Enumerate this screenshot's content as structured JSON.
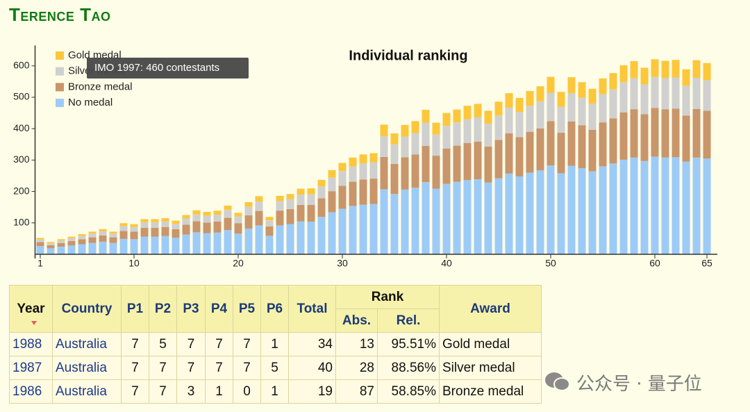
{
  "header": {
    "title": "Terence Tao"
  },
  "chart_data": {
    "type": "stacked_bar",
    "title": "Individual ranking",
    "tooltip": "IMO 1997: 460 contestants",
    "x": [
      1,
      2,
      3,
      4,
      5,
      6,
      7,
      8,
      9,
      10,
      11,
      12,
      13,
      14,
      15,
      16,
      17,
      18,
      19,
      20,
      21,
      22,
      23,
      24,
      25,
      26,
      27,
      28,
      29,
      30,
      31,
      32,
      33,
      34,
      35,
      36,
      37,
      38,
      39,
      40,
      41,
      42,
      43,
      44,
      45,
      46,
      47,
      48,
      49,
      50,
      51,
      52,
      53,
      54,
      55,
      56,
      57,
      58,
      59,
      60,
      61,
      62,
      63,
      64,
      65
    ],
    "xlim": [
      0.5,
      66
    ],
    "xticks": [
      1,
      10,
      20,
      30,
      40,
      50,
      60,
      65
    ],
    "ylim": [
      0,
      665
    ],
    "yticks": [
      100,
      200,
      300,
      400,
      500,
      600
    ],
    "legend": "top-left",
    "series": [
      {
        "name": "Gold medal",
        "color": "#fdc73c",
        "values": [
          5,
          4,
          4,
          5,
          6,
          6,
          7,
          6,
          9,
          9,
          10,
          10,
          10,
          10,
          11,
          13,
          12,
          13,
          14,
          12,
          15,
          17,
          11,
          17,
          17,
          19,
          19,
          21,
          24,
          26,
          28,
          29,
          29,
          37,
          35,
          37,
          38,
          41,
          38,
          41,
          41,
          43,
          43,
          41,
          44,
          46,
          45,
          47,
          48,
          51,
          47,
          51,
          49,
          47,
          50,
          52,
          54,
          55,
          53,
          56,
          55,
          56,
          53,
          56,
          55
        ]
      },
      {
        "name": "Silver medal",
        "color": "#d0d0d0",
        "values": [
          8,
          6,
          8,
          9,
          10,
          12,
          13,
          12,
          16,
          15,
          18,
          18,
          18,
          17,
          20,
          22,
          22,
          22,
          25,
          21,
          27,
          30,
          19,
          30,
          31,
          33,
          34,
          38,
          43,
          47,
          49,
          51,
          52,
          66,
          62,
          66,
          68,
          74,
          67,
          72,
          74,
          76,
          77,
          73,
          78,
          82,
          80,
          83,
          86,
          90,
          83,
          90,
          88,
          84,
          90,
          92,
          96,
          98,
          95,
          99,
          99,
          99,
          94,
          99,
          97
        ]
      },
      {
        "name": "Bronze medal",
        "color": "#c9956a",
        "values": [
          13,
          10,
          12,
          14,
          16,
          18,
          20,
          18,
          25,
          24,
          28,
          28,
          29,
          27,
          31,
          35,
          34,
          35,
          39,
          33,
          42,
          46,
          30,
          47,
          48,
          52,
          53,
          59,
          67,
          73,
          77,
          80,
          81,
          103,
          96,
          103,
          106,
          115,
          105,
          113,
          115,
          118,
          120,
          114,
          122,
          128,
          125,
          130,
          134,
          141,
          129,
          141,
          137,
          132,
          140,
          144,
          151,
          154,
          149,
          155,
          154,
          155,
          147,
          155,
          152
        ]
      },
      {
        "name": "No medal",
        "color": "#9dcbf8",
        "values": [
          26,
          19,
          24,
          28,
          32,
          36,
          40,
          36,
          49,
          48,
          56,
          56,
          58,
          53,
          63,
          70,
          67,
          69,
          77,
          66,
          82,
          92,
          59,
          92,
          96,
          105,
          104,
          119,
          134,
          145,
          154,
          158,
          160,
          207,
          192,
          206,
          212,
          230,
          209,
          224,
          231,
          236,
          239,
          229,
          242,
          257,
          248,
          260,
          267,
          283,
          258,
          282,
          274,
          264,
          280,
          289,
          301,
          308,
          297,
          311,
          308,
          309,
          295,
          308,
          305
        ]
      }
    ]
  },
  "table": {
    "header": [
      "Year",
      "Country",
      "P1",
      "P2",
      "P3",
      "P4",
      "P5",
      "P6",
      "Total",
      "Rank",
      "Award"
    ],
    "subheader": [
      "Abs.",
      "Rel."
    ],
    "rows": [
      [
        "1988",
        "Australia",
        7,
        5,
        7,
        7,
        7,
        1,
        34,
        13,
        "95.51%",
        "Gold medal"
      ],
      [
        "1987",
        "Australia",
        7,
        7,
        7,
        7,
        7,
        5,
        40,
        28,
        "88.56%",
        "Silver medal"
      ],
      [
        "1986",
        "Australia",
        7,
        7,
        3,
        1,
        0,
        1,
        19,
        87,
        "58.85%",
        "Bronze medal"
      ]
    ]
  },
  "watermark": "公众号 · 量子位"
}
